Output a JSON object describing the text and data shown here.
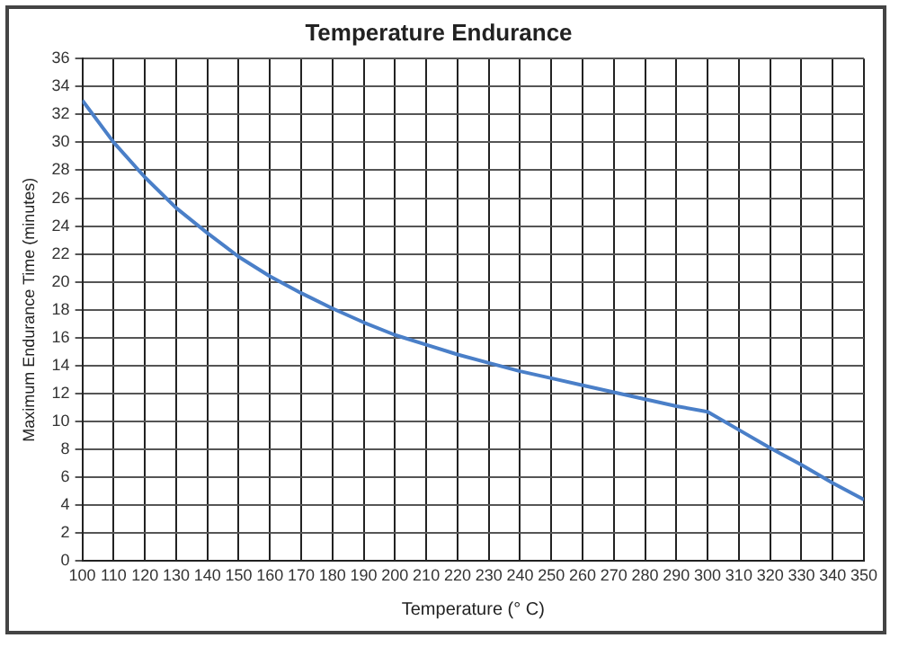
{
  "chart_data": {
    "type": "line",
    "title": "Temperature Endurance",
    "xlabel": "Temperature (° C)",
    "ylabel": "Maximum Endurance Time (minutes)",
    "x": [
      100,
      110,
      120,
      130,
      140,
      150,
      160,
      170,
      180,
      190,
      200,
      210,
      220,
      230,
      240,
      250,
      260,
      270,
      280,
      290,
      300,
      310,
      320,
      330,
      340,
      350
    ],
    "series": [
      {
        "color": "#4a7fc8",
        "values": [
          33,
          30,
          27.5,
          25.3,
          23.5,
          21.8,
          20.4,
          19.2,
          18.1,
          17.1,
          16.2,
          15.5,
          14.8,
          14.2,
          13.6,
          13.1,
          12.6,
          12.1,
          11.6,
          11.1,
          10.7,
          9.4,
          8.1,
          6.9,
          5.6,
          4.4
        ]
      }
    ],
    "xlim": [
      100,
      350
    ],
    "xticks": [
      100,
      110,
      120,
      130,
      140,
      150,
      160,
      170,
      180,
      190,
      200,
      210,
      220,
      230,
      240,
      250,
      260,
      270,
      280,
      290,
      300,
      310,
      320,
      330,
      340,
      350
    ],
    "ylim": [
      0,
      36
    ],
    "yticks": [
      0,
      2,
      4,
      6,
      8,
      10,
      12,
      14,
      16,
      18,
      20,
      22,
      24,
      26,
      28,
      30,
      32,
      34,
      36
    ],
    "grid": true,
    "legend": false,
    "marker": "none",
    "line_style": "solid"
  }
}
